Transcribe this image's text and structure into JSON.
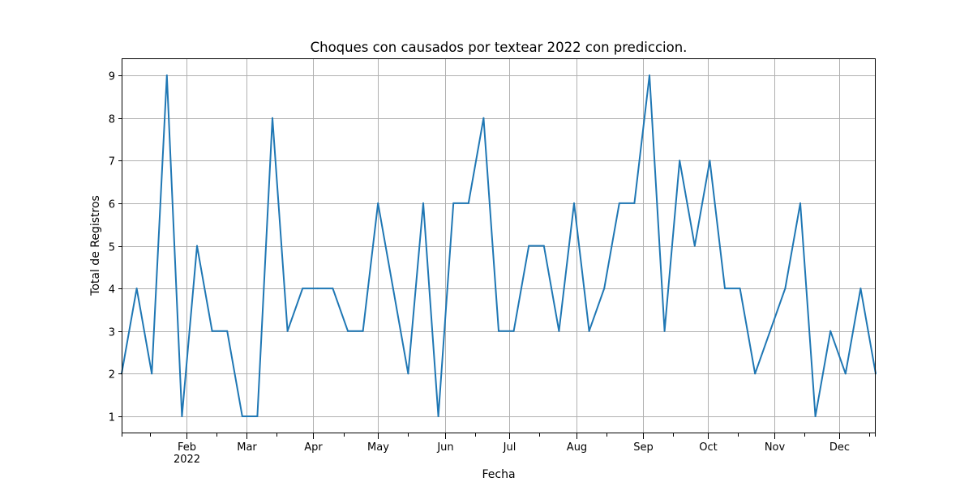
{
  "chart_data": {
    "type": "line",
    "title": "Choques con causados por textear 2022 con prediccion.",
    "xlabel": "Fecha",
    "ylabel": "Total de Registros",
    "x": [
      "2022-01-02",
      "2022-01-09",
      "2022-01-16",
      "2022-01-23",
      "2022-01-30",
      "2022-02-06",
      "2022-02-13",
      "2022-02-20",
      "2022-02-27",
      "2022-03-06",
      "2022-03-13",
      "2022-03-20",
      "2022-03-27",
      "2022-04-03",
      "2022-04-10",
      "2022-04-17",
      "2022-04-24",
      "2022-05-01",
      "2022-05-08",
      "2022-05-15",
      "2022-05-22",
      "2022-05-29",
      "2022-06-05",
      "2022-06-12",
      "2022-06-19",
      "2022-06-26",
      "2022-07-03",
      "2022-07-10",
      "2022-07-17",
      "2022-07-24",
      "2022-07-31",
      "2022-08-07",
      "2022-08-14",
      "2022-08-21",
      "2022-08-28",
      "2022-09-04",
      "2022-09-11",
      "2022-09-18",
      "2022-09-25",
      "2022-10-02",
      "2022-10-09",
      "2022-10-16",
      "2022-10-23",
      "2022-10-30",
      "2022-11-06",
      "2022-11-13",
      "2022-11-20",
      "2022-11-27",
      "2022-12-04",
      "2022-12-11",
      "2022-12-18"
    ],
    "series": [
      {
        "values": [
          2,
          4,
          2,
          9,
          1,
          5,
          3,
          3,
          1,
          1,
          8,
          3,
          4,
          4,
          4,
          3,
          3,
          6,
          4,
          2,
          6,
          1,
          6,
          6,
          8,
          3,
          3,
          5,
          5,
          3,
          6,
          3,
          4,
          6,
          6,
          9,
          3,
          7,
          5,
          7,
          4,
          4,
          2,
          3,
          4,
          6,
          1,
          3,
          2,
          4,
          2
        ],
        "color": "#1f77b4"
      }
    ],
    "xlim": [
      "2022-01-02",
      "2022-12-18"
    ],
    "ylim": [
      0.6,
      9.4
    ],
    "y_ticks": [
      "1",
      "2",
      "3",
      "4",
      "5",
      "6",
      "7",
      "8",
      "9"
    ],
    "x_major_ticks": [
      {
        "date": "2022-02-01",
        "label": "Feb",
        "sublabel": "2022"
      },
      {
        "date": "2022-03-01",
        "label": "Mar",
        "sublabel": ""
      },
      {
        "date": "2022-04-01",
        "label": "Apr",
        "sublabel": ""
      },
      {
        "date": "2022-05-01",
        "label": "May",
        "sublabel": ""
      },
      {
        "date": "2022-06-01",
        "label": "Jun",
        "sublabel": ""
      },
      {
        "date": "2022-07-01",
        "label": "Jul",
        "sublabel": ""
      },
      {
        "date": "2022-08-01",
        "label": "Aug",
        "sublabel": ""
      },
      {
        "date": "2022-09-01",
        "label": "Sep",
        "sublabel": ""
      },
      {
        "date": "2022-10-01",
        "label": "Oct",
        "sublabel": ""
      },
      {
        "date": "2022-11-01",
        "label": "Nov",
        "sublabel": ""
      },
      {
        "date": "2022-12-01",
        "label": "Dec",
        "sublabel": ""
      }
    ],
    "grid": true,
    "legend": "none"
  }
}
